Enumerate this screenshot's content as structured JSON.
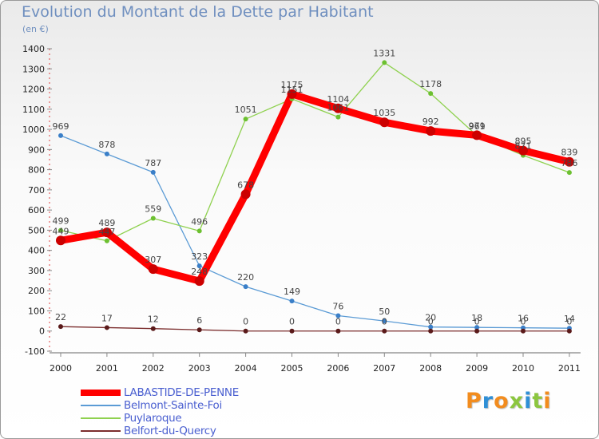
{
  "header": {
    "title": "Evolution du Montant de la Dette par Habitant",
    "subtitle": "(en €)"
  },
  "logo": {
    "text": "Proxiti",
    "colors": [
      "#f28c1e",
      "#2f8fd6",
      "#f28c1e",
      "#8cc63f",
      "#2f8fd6",
      "#8cc63f",
      "#f28c1e"
    ]
  },
  "chart_data": {
    "type": "line",
    "title": "Evolution du Montant de la Dette par Habitant",
    "subtitle": "(en €)",
    "xlabel": "",
    "ylabel": "",
    "x": [
      "2000",
      "2001",
      "2002",
      "2003",
      "2004",
      "2005",
      "2006",
      "2007",
      "2008",
      "2009",
      "2010",
      "2011"
    ],
    "ylim": [
      -100,
      1400
    ],
    "yticks": [
      -100,
      0,
      100,
      200,
      300,
      400,
      500,
      600,
      700,
      800,
      900,
      1000,
      1100,
      1200,
      1300,
      1400
    ],
    "grid": false,
    "legend_position": "bottom-left",
    "series": [
      {
        "name": "Belmont-Sainte-Foi",
        "color": "#5b9bd5",
        "values": [
          969,
          878,
          787,
          323,
          220,
          149,
          76,
          50,
          20,
          18,
          16,
          14
        ]
      },
      {
        "name": "Puylaroque",
        "color": "#8fd14f",
        "values": [
          499,
          447,
          559,
          496,
          1051,
          1151,
          1061,
          1331,
          1178,
          969,
          871,
          786
        ]
      },
      {
        "name": "Belfort-du-Quercy",
        "color": "#7b2d2d",
        "values": [
          22,
          17,
          12,
          6,
          0,
          0,
          0,
          0,
          0,
          0,
          0,
          0
        ]
      },
      {
        "name": "LABASTIDE-DE-PENNE",
        "color": "#ff0000",
        "values": [
          449,
          489,
          307,
          248,
          678,
          1175,
          1104,
          1035,
          992,
          971,
          895,
          839
        ]
      }
    ]
  }
}
